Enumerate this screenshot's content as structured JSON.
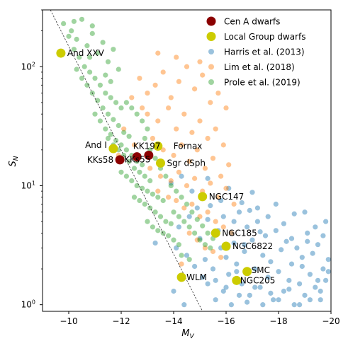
{
  "chart_data": {
    "type": "scatter",
    "xlabel_base": "M",
    "xlabel_sub": "V",
    "ylabel_base": "S",
    "ylabel_sub": "N",
    "x_range": [
      -9,
      -20
    ],
    "y_range": [
      0.88,
      300
    ],
    "y_scale": "log",
    "x_ticks": [
      -10,
      -12,
      -14,
      -16,
      -18,
      -20
    ],
    "x_tick_labels": [
      "−10",
      "−12",
      "−14",
      "−16",
      "−18",
      "−20"
    ],
    "y_ticks": [
      1,
      10,
      100
    ],
    "y_tick_bases": [
      "10",
      "10",
      "10"
    ],
    "y_tick_exps": [
      "0",
      "1",
      "2"
    ],
    "legend_position": "upper right",
    "legend": [
      {
        "label": "Cen A dwarfs",
        "color": "#8b0000",
        "marker": "large"
      },
      {
        "label": "Local Group dwarfs",
        "color": "#cccc00",
        "marker": "large"
      },
      {
        "label": "Harris et al. (2013)",
        "color": "#1f77b4",
        "marker": "small"
      },
      {
        "label": "Lim et al. (2018)",
        "color": "#ff7f0e",
        "marker": "small"
      },
      {
        "label": "Prole et al. (2019)",
        "color": "#2ca02c",
        "marker": "small"
      }
    ],
    "reference_line": {
      "style": "dashed",
      "points": [
        [
          -9.3,
          300
        ],
        [
          -15.1,
          0.88
        ]
      ]
    },
    "cen_a_dwarfs": [
      {
        "name": "KKs58",
        "x": -11.95,
        "y": 16.5
      },
      {
        "name": "KKs55",
        "x": -12.6,
        "y": 17.5
      },
      {
        "name": "KK197",
        "x": -13.05,
        "y": 18.0
      }
    ],
    "local_group_dwarfs": [
      {
        "name": "And XXV",
        "x": -9.7,
        "y": 130
      },
      {
        "name": "And I",
        "x": -11.7,
        "y": 20.5
      },
      {
        "name": "Fornax",
        "x": -13.4,
        "y": 21.5
      },
      {
        "name": "Sgr dSph",
        "x": -13.5,
        "y": 15.5
      },
      {
        "name": "NGC147",
        "x": -15.1,
        "y": 8.1
      },
      {
        "name": "NGC185",
        "x": -15.6,
        "y": 4.0
      },
      {
        "name": "NGC6822",
        "x": -16.0,
        "y": 3.1
      },
      {
        "name": "WLM",
        "x": -14.3,
        "y": 1.7
      },
      {
        "name": "SMC",
        "x": -16.8,
        "y": 1.9
      },
      {
        "name": "NGC205",
        "x": -16.4,
        "y": 1.6
      }
    ],
    "harris_2013": [
      [
        -14.2,
        4.5
      ],
      [
        -14.1,
        3.0
      ],
      [
        -14.6,
        5.5
      ],
      [
        -14.9,
        6.5
      ],
      [
        -15.0,
        3.6
      ],
      [
        -15.2,
        2.4
      ],
      [
        -15.3,
        5.2
      ],
      [
        -15.4,
        6.8
      ],
      [
        -15.5,
        2.0
      ],
      [
        -15.7,
        4.2
      ],
      [
        -15.8,
        3.0
      ],
      [
        -15.9,
        5.5
      ],
      [
        -16.0,
        2.5
      ],
      [
        -16.1,
        1.8
      ],
      [
        -16.2,
        4.0
      ],
      [
        -16.3,
        3.3
      ],
      [
        -16.4,
        2.2
      ],
      [
        -16.5,
        6.0
      ],
      [
        -16.6,
        1.5
      ],
      [
        -16.7,
        2.8
      ],
      [
        -16.8,
        4.5
      ],
      [
        -16.9,
        1.2
      ],
      [
        -17.0,
        3.5
      ],
      [
        -17.1,
        2.0
      ],
      [
        -17.2,
        5.0
      ],
      [
        -17.3,
        1.4
      ],
      [
        -17.4,
        2.6
      ],
      [
        -17.5,
        3.8
      ],
      [
        -17.6,
        1.7
      ],
      [
        -17.7,
        2.3
      ],
      [
        -17.8,
        1.1
      ],
      [
        -17.9,
        4.2
      ],
      [
        -18.0,
        1.9
      ],
      [
        -18.1,
        2.9
      ],
      [
        -18.2,
        1.3
      ],
      [
        -18.3,
        3.4
      ],
      [
        -18.4,
        1.6
      ],
      [
        -18.5,
        2.2
      ],
      [
        -18.6,
        1.0
      ],
      [
        -18.7,
        3.0
      ],
      [
        -18.8,
        1.5
      ],
      [
        -18.9,
        2.5
      ],
      [
        -19.0,
        1.2
      ],
      [
        -19.1,
        4.0
      ],
      [
        -19.2,
        1.8
      ],
      [
        -19.3,
        2.7
      ],
      [
        -19.4,
        1.4
      ],
      [
        -19.5,
        3.2
      ],
      [
        -19.6,
        1.1
      ],
      [
        -19.7,
        2.0
      ],
      [
        -19.8,
        1.6
      ],
      [
        -19.9,
        2.4
      ],
      [
        -15.6,
        1.1
      ],
      [
        -15.9,
        1.3
      ],
      [
        -16.2,
        1.0
      ],
      [
        -16.5,
        1.2
      ],
      [
        -16.8,
        1.05
      ],
      [
        -17.1,
        1.4
      ],
      [
        -17.4,
        1.0
      ],
      [
        -17.7,
        1.25
      ],
      [
        -18.0,
        1.1
      ],
      [
        -18.4,
        1.35
      ],
      [
        -18.8,
        1.0
      ],
      [
        -19.2,
        1.1
      ],
      [
        -19.6,
        1.3
      ],
      [
        -15.3,
        1.5
      ],
      [
        -15.6,
        1.6
      ],
      [
        -16.0,
        1.4
      ],
      [
        -16.4,
        1.9
      ],
      [
        -14.5,
        2.6
      ],
      [
        -14.8,
        2.1
      ],
      [
        -15.1,
        1.7
      ],
      [
        -13.3,
        3.3
      ],
      [
        -14.0,
        1.3
      ],
      [
        -14.4,
        1.0
      ],
      [
        -17.2,
        6.5
      ],
      [
        -17.6,
        5.5
      ],
      [
        -18.2,
        4.8
      ],
      [
        -18.6,
        5.8
      ],
      [
        -19.0,
        6.0
      ],
      [
        -19.4,
        4.5
      ],
      [
        -19.8,
        5.0
      ],
      [
        -17.9,
        7.0
      ],
      [
        -16.1,
        9.5
      ],
      [
        -15.8,
        7.5
      ],
      [
        -16.6,
        7.2
      ],
      [
        -17.0,
        8.8
      ],
      [
        -14.7,
        9.0
      ],
      [
        -15.3,
        11.5
      ],
      [
        -13.9,
        10.5
      ],
      [
        -14.3,
        12.0
      ],
      [
        -16.3,
        5.0
      ],
      [
        -16.9,
        6.2
      ],
      [
        -18.5,
        3.6
      ],
      [
        -19.1,
        3.4
      ],
      [
        -19.7,
        3.8
      ],
      [
        -17.3,
        4.1
      ],
      [
        -16.7,
        3.2
      ],
      [
        -18.9,
        2.1
      ],
      [
        -19.9,
        1.9
      ],
      [
        -19.5,
        1.6
      ]
    ],
    "lim_2018": [
      [
        -12.7,
        80
      ],
      [
        -13.0,
        60
      ],
      [
        -13.3,
        70
      ],
      [
        -13.6,
        90
      ],
      [
        -13.9,
        55
      ],
      [
        -14.2,
        75
      ],
      [
        -14.5,
        100
      ],
      [
        -14.8,
        65
      ],
      [
        -15.1,
        85
      ],
      [
        -15.4,
        50
      ],
      [
        -15.7,
        60
      ],
      [
        -16.0,
        45
      ],
      [
        -13.0,
        40
      ],
      [
        -13.4,
        35
      ],
      [
        -13.8,
        45
      ],
      [
        -14.1,
        30
      ],
      [
        -14.4,
        40
      ],
      [
        -14.7,
        28
      ],
      [
        -15.0,
        35
      ],
      [
        -15.3,
        25
      ],
      [
        -15.6,
        30
      ],
      [
        -15.9,
        22
      ],
      [
        -13.2,
        25
      ],
      [
        -13.6,
        20
      ],
      [
        -14.0,
        18
      ],
      [
        -14.3,
        22
      ],
      [
        -14.6,
        16
      ],
      [
        -14.9,
        20
      ],
      [
        -15.2,
        14
      ],
      [
        -15.5,
        17
      ],
      [
        -15.8,
        12
      ],
      [
        -16.1,
        15
      ],
      [
        -13.1,
        14
      ],
      [
        -13.5,
        12
      ],
      [
        -13.9,
        11
      ],
      [
        -14.2,
        13
      ],
      [
        -14.5,
        10
      ],
      [
        -14.8,
        11.5
      ],
      [
        -15.1,
        9
      ],
      [
        -15.4,
        10.5
      ],
      [
        -15.7,
        8
      ],
      [
        -16.0,
        9.5
      ],
      [
        -16.3,
        7
      ],
      [
        -13.4,
        9
      ],
      [
        -13.8,
        8
      ],
      [
        -14.1,
        7.5
      ],
      [
        -14.4,
        6.5
      ],
      [
        -14.7,
        7
      ],
      [
        -15.0,
        5.5
      ],
      [
        -15.3,
        6
      ],
      [
        -15.6,
        5
      ],
      [
        -15.9,
        4.5
      ],
      [
        -16.2,
        4
      ],
      [
        -14.6,
        4
      ],
      [
        -14.9,
        3.5
      ],
      [
        -15.2,
        3
      ],
      [
        -15.5,
        2.8
      ],
      [
        -15.8,
        2.5
      ],
      [
        -14.3,
        2.2
      ],
      [
        -12.4,
        55
      ],
      [
        -12.8,
        45
      ],
      [
        -12.1,
        30
      ],
      [
        -12.5,
        22
      ],
      [
        -11.9,
        18
      ],
      [
        -14.1,
        120
      ],
      [
        -13.4,
        130
      ],
      [
        -15.0,
        110
      ]
    ],
    "prole_2019": [
      [
        -9.8,
        230
      ],
      [
        -10.1,
        200
      ],
      [
        -10.3,
        170
      ],
      [
        -10.5,
        250
      ],
      [
        -10.7,
        150
      ],
      [
        -10.9,
        190
      ],
      [
        -11.1,
        130
      ],
      [
        -11.3,
        160
      ],
      [
        -11.5,
        110
      ],
      [
        -11.7,
        140
      ],
      [
        -11.9,
        95
      ],
      [
        -10.0,
        180
      ],
      [
        -10.2,
        140
      ],
      [
        -10.4,
        120
      ],
      [
        -10.6,
        100
      ],
      [
        -10.8,
        90
      ],
      [
        -11.0,
        80
      ],
      [
        -11.2,
        70
      ],
      [
        -11.4,
        60
      ],
      [
        -11.6,
        55
      ],
      [
        -11.8,
        50
      ],
      [
        -12.0,
        45
      ],
      [
        -10.3,
        95
      ],
      [
        -10.5,
        80
      ],
      [
        -10.7,
        70
      ],
      [
        -10.9,
        60
      ],
      [
        -11.1,
        52
      ],
      [
        -11.3,
        45
      ],
      [
        -11.5,
        40
      ],
      [
        -11.7,
        36
      ],
      [
        -11.9,
        32
      ],
      [
        -12.1,
        28
      ],
      [
        -12.3,
        26
      ],
      [
        -11.0,
        40
      ],
      [
        -11.2,
        35
      ],
      [
        -11.4,
        30
      ],
      [
        -11.6,
        27
      ],
      [
        -11.8,
        24
      ],
      [
        -12.0,
        22
      ],
      [
        -12.2,
        20
      ],
      [
        -12.4,
        18
      ],
      [
        -12.6,
        16
      ],
      [
        -12.8,
        15
      ],
      [
        -11.5,
        25
      ],
      [
        -11.7,
        22
      ],
      [
        -11.9,
        20
      ],
      [
        -12.1,
        18
      ],
      [
        -12.3,
        16
      ],
      [
        -12.5,
        14
      ],
      [
        -12.7,
        13
      ],
      [
        -12.9,
        12
      ],
      [
        -13.1,
        11
      ],
      [
        -12.0,
        13
      ],
      [
        -12.2,
        12
      ],
      [
        -12.4,
        11
      ],
      [
        -12.6,
        10
      ],
      [
        -12.8,
        9.5
      ],
      [
        -13.0,
        9
      ],
      [
        -13.2,
        8.5
      ],
      [
        -13.4,
        8
      ],
      [
        -13.6,
        7.5
      ],
      [
        -12.5,
        8
      ],
      [
        -12.7,
        7.5
      ],
      [
        -12.9,
        7
      ],
      [
        -13.1,
        6.5
      ],
      [
        -13.3,
        6
      ],
      [
        -13.5,
        5.5
      ],
      [
        -13.7,
        5
      ],
      [
        -13.9,
        4.8
      ],
      [
        -13.0,
        5
      ],
      [
        -13.2,
        4.5
      ],
      [
        -13.4,
        4.2
      ],
      [
        -13.6,
        4
      ],
      [
        -13.8,
        3.8
      ],
      [
        -14.0,
        3.5
      ],
      [
        -14.2,
        3.2
      ],
      [
        -12.6,
        40
      ],
      [
        -12.8,
        35
      ],
      [
        -13.0,
        30
      ],
      [
        -12.2,
        50
      ],
      [
        -12.4,
        45
      ],
      [
        -11.4,
        85
      ],
      [
        -11.6,
        75
      ],
      [
        -10.8,
        120
      ],
      [
        -10.9,
        220
      ],
      [
        -10.2,
        240
      ],
      [
        -12.9,
        25
      ],
      [
        -13.1,
        20
      ],
      [
        -13.3,
        17
      ],
      [
        -13.5,
        14
      ],
      [
        -13.7,
        12
      ],
      [
        -13.9,
        10
      ],
      [
        -14.1,
        9
      ],
      [
        -14.3,
        8
      ],
      [
        -14.5,
        7
      ],
      [
        -14.7,
        6
      ],
      [
        -14.9,
        5.2
      ],
      [
        -15.1,
        4.6
      ],
      [
        -15.3,
        4
      ],
      [
        -15.5,
        3.6
      ],
      [
        -14.0,
        6
      ],
      [
        -14.2,
        5.5
      ],
      [
        -14.4,
        5
      ],
      [
        -14.6,
        4.5
      ],
      [
        -14.8,
        4
      ],
      [
        -15.0,
        3.5
      ],
      [
        -15.2,
        3.2
      ],
      [
        -15.4,
        3.0
      ],
      [
        -14.3,
        2.6
      ],
      [
        -14.6,
        2.4
      ]
    ]
  }
}
